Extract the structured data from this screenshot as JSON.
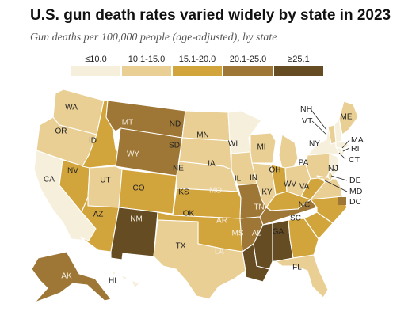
{
  "title": "U.S. gun death rates varied widely by state in 2023",
  "subtitle": "Gun deaths per 100,000 people (age-adjusted), by state",
  "legend": [
    {
      "label": "≤10.0",
      "color": "#f6efdc"
    },
    {
      "label": "10.1-15.0",
      "color": "#e9cf94"
    },
    {
      "label": "15.1-20.0",
      "color": "#d2a43c"
    },
    {
      "label": "20.1-25.0",
      "color": "#9e7635"
    },
    {
      "label": "≥25.1",
      "color": "#654c22"
    }
  ],
  "states": [
    {
      "abbr": "WA",
      "bin": 1
    },
    {
      "abbr": "OR",
      "bin": 1
    },
    {
      "abbr": "CA",
      "bin": 0
    },
    {
      "abbr": "ID",
      "bin": 2
    },
    {
      "abbr": "NV",
      "bin": 2
    },
    {
      "abbr": "AZ",
      "bin": 2
    },
    {
      "abbr": "UT",
      "bin": 1
    },
    {
      "abbr": "MT",
      "bin": 3
    },
    {
      "abbr": "WY",
      "bin": 3
    },
    {
      "abbr": "CO",
      "bin": 2
    },
    {
      "abbr": "NM",
      "bin": 4
    },
    {
      "abbr": "ND",
      "bin": 1
    },
    {
      "abbr": "SD",
      "bin": 1
    },
    {
      "abbr": "NE",
      "bin": 1
    },
    {
      "abbr": "KS",
      "bin": 2
    },
    {
      "abbr": "OK",
      "bin": 2
    },
    {
      "abbr": "TX",
      "bin": 1
    },
    {
      "abbr": "MN",
      "bin": 0
    },
    {
      "abbr": "IA",
      "bin": 1
    },
    {
      "abbr": "MO",
      "bin": 3
    },
    {
      "abbr": "AR",
      "bin": 3
    },
    {
      "abbr": "LA",
      "bin": 4
    },
    {
      "abbr": "WI",
      "bin": 1
    },
    {
      "abbr": "IL",
      "bin": 1
    },
    {
      "abbr": "MI",
      "bin": 1
    },
    {
      "abbr": "IN",
      "bin": 2
    },
    {
      "abbr": "OH",
      "bin": 1
    },
    {
      "abbr": "KY",
      "bin": 2
    },
    {
      "abbr": "TN",
      "bin": 3
    },
    {
      "abbr": "MS",
      "bin": 4
    },
    {
      "abbr": "AL",
      "bin": 4
    },
    {
      "abbr": "GA",
      "bin": 2
    },
    {
      "abbr": "FL",
      "bin": 1
    },
    {
      "abbr": "SC",
      "bin": 2
    },
    {
      "abbr": "NC",
      "bin": 2
    },
    {
      "abbr": "VA",
      "bin": 1
    },
    {
      "abbr": "WV",
      "bin": 2
    },
    {
      "abbr": "PA",
      "bin": 1
    },
    {
      "abbr": "NY",
      "bin": 0
    },
    {
      "abbr": "VT",
      "bin": 1
    },
    {
      "abbr": "NH",
      "bin": 0
    },
    {
      "abbr": "ME",
      "bin": 1
    },
    {
      "abbr": "MA",
      "bin": 0
    },
    {
      "abbr": "RI",
      "bin": 0
    },
    {
      "abbr": "CT",
      "bin": 0
    },
    {
      "abbr": "NJ",
      "bin": 0
    },
    {
      "abbr": "DE",
      "bin": 1
    },
    {
      "abbr": "MD",
      "bin": 1
    },
    {
      "abbr": "DC",
      "bin": 3
    },
    {
      "abbr": "AK",
      "bin": 3
    },
    {
      "abbr": "HI",
      "bin": 0
    }
  ]
}
